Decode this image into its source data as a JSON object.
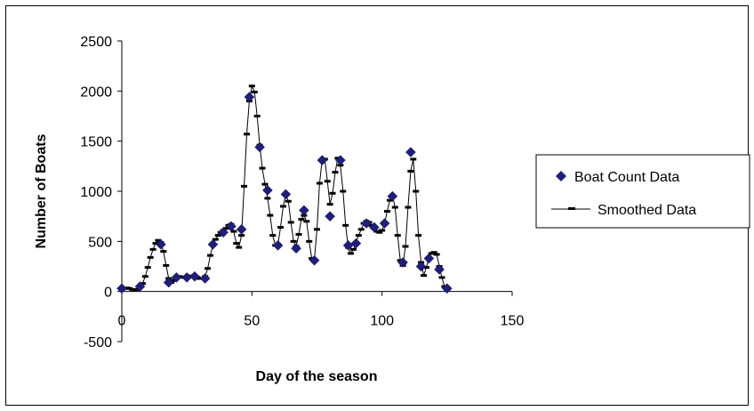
{
  "chart_data": {
    "type": "scatter",
    "xlabel": "Day of the season",
    "ylabel": "Number of Boats",
    "xlim": [
      0,
      150
    ],
    "ylim": [
      -500,
      2500
    ],
    "x_ticks": [
      0,
      50,
      100,
      150
    ],
    "y_ticks": [
      -500,
      0,
      500,
      1000,
      1500,
      2000,
      2500
    ],
    "grid": false,
    "legend_position": "right",
    "series": [
      {
        "name": "Boat Count Data",
        "marker": "diamond",
        "color": "#1f1f7a",
        "points": [
          [
            0,
            30
          ],
          [
            7,
            50
          ],
          [
            15,
            470
          ],
          [
            18,
            90
          ],
          [
            21,
            140
          ],
          [
            25,
            140
          ],
          [
            28,
            150
          ],
          [
            32,
            130
          ],
          [
            35,
            470
          ],
          [
            39,
            590
          ],
          [
            42,
            650
          ],
          [
            46,
            620
          ],
          [
            49,
            1940
          ],
          [
            53,
            1440
          ],
          [
            56,
            1010
          ],
          [
            60,
            460
          ],
          [
            63,
            970
          ],
          [
            67,
            430
          ],
          [
            70,
            810
          ],
          [
            74,
            310
          ],
          [
            77,
            1310
          ],
          [
            80,
            750
          ],
          [
            84,
            1310
          ],
          [
            87,
            460
          ],
          [
            90,
            480
          ],
          [
            94,
            680
          ],
          [
            97,
            640
          ],
          [
            101,
            680
          ],
          [
            104,
            950
          ],
          [
            108,
            290
          ],
          [
            111,
            1390
          ],
          [
            115,
            250
          ],
          [
            118,
            330
          ],
          [
            122,
            220
          ],
          [
            125,
            30
          ]
        ]
      },
      {
        "name": "Smoothed Data",
        "marker": "dash",
        "color": "#000000",
        "points": [
          [
            0,
            20
          ],
          [
            1,
            30
          ],
          [
            2,
            35
          ],
          [
            3,
            30
          ],
          [
            4,
            20
          ],
          [
            5,
            15
          ],
          [
            6,
            20
          ],
          [
            7,
            40
          ],
          [
            8,
            80
          ],
          [
            9,
            150
          ],
          [
            10,
            240
          ],
          [
            11,
            340
          ],
          [
            12,
            420
          ],
          [
            13,
            480
          ],
          [
            14,
            510
          ],
          [
            15,
            490
          ],
          [
            16,
            400
          ],
          [
            17,
            260
          ],
          [
            18,
            130
          ],
          [
            19,
            90
          ],
          [
            20,
            110
          ],
          [
            21,
            140
          ],
          [
            22,
            150
          ],
          [
            23,
            145
          ],
          [
            24,
            140
          ],
          [
            25,
            145
          ],
          [
            26,
            150
          ],
          [
            27,
            155
          ],
          [
            28,
            150
          ],
          [
            29,
            140
          ],
          [
            30,
            130
          ],
          [
            31,
            130
          ],
          [
            32,
            150
          ],
          [
            33,
            230
          ],
          [
            34,
            360
          ],
          [
            35,
            460
          ],
          [
            36,
            520
          ],
          [
            37,
            560
          ],
          [
            38,
            590
          ],
          [
            39,
            610
          ],
          [
            40,
            630
          ],
          [
            41,
            660
          ],
          [
            42,
            670
          ],
          [
            43,
            600
          ],
          [
            44,
            480
          ],
          [
            45,
            440
          ],
          [
            46,
            560
          ],
          [
            47,
            1050
          ],
          [
            48,
            1570
          ],
          [
            49,
            1900
          ],
          [
            50,
            2050
          ],
          [
            51,
            1990
          ],
          [
            52,
            1750
          ],
          [
            53,
            1460
          ],
          [
            54,
            1230
          ],
          [
            55,
            1070
          ],
          [
            56,
            930
          ],
          [
            57,
            760
          ],
          [
            58,
            560
          ],
          [
            59,
            460
          ],
          [
            60,
            470
          ],
          [
            61,
            640
          ],
          [
            62,
            850
          ],
          [
            63,
            970
          ],
          [
            64,
            900
          ],
          [
            65,
            690
          ],
          [
            66,
            500
          ],
          [
            67,
            450
          ],
          [
            68,
            570
          ],
          [
            69,
            720
          ],
          [
            70,
            760
          ],
          [
            71,
            700
          ],
          [
            72,
            500
          ],
          [
            73,
            330
          ],
          [
            74,
            320
          ],
          [
            75,
            620
          ],
          [
            76,
            1080
          ],
          [
            77,
            1320
          ],
          [
            78,
            1320
          ],
          [
            79,
            1100
          ],
          [
            80,
            870
          ],
          [
            81,
            980
          ],
          [
            82,
            1190
          ],
          [
            83,
            1330
          ],
          [
            84,
            1260
          ],
          [
            85,
            1000
          ],
          [
            86,
            660
          ],
          [
            87,
            440
          ],
          [
            88,
            380
          ],
          [
            89,
            420
          ],
          [
            90,
            490
          ],
          [
            91,
            560
          ],
          [
            92,
            620
          ],
          [
            93,
            680
          ],
          [
            94,
            700
          ],
          [
            95,
            690
          ],
          [
            96,
            660
          ],
          [
            97,
            630
          ],
          [
            98,
            600
          ],
          [
            99,
            590
          ],
          [
            100,
            610
          ],
          [
            101,
            680
          ],
          [
            102,
            800
          ],
          [
            103,
            910
          ],
          [
            104,
            960
          ],
          [
            105,
            840
          ],
          [
            106,
            560
          ],
          [
            107,
            310
          ],
          [
            108,
            260
          ],
          [
            109,
            450
          ],
          [
            110,
            840
          ],
          [
            111,
            1200
          ],
          [
            112,
            1320
          ],
          [
            113,
            1000
          ],
          [
            114,
            560
          ],
          [
            115,
            290
          ],
          [
            116,
            160
          ],
          [
            117,
            240
          ],
          [
            118,
            330
          ],
          [
            119,
            380
          ],
          [
            120,
            390
          ],
          [
            121,
            370
          ],
          [
            122,
            250
          ],
          [
            123,
            140
          ],
          [
            124,
            50
          ],
          [
            125,
            20
          ]
        ]
      }
    ]
  }
}
